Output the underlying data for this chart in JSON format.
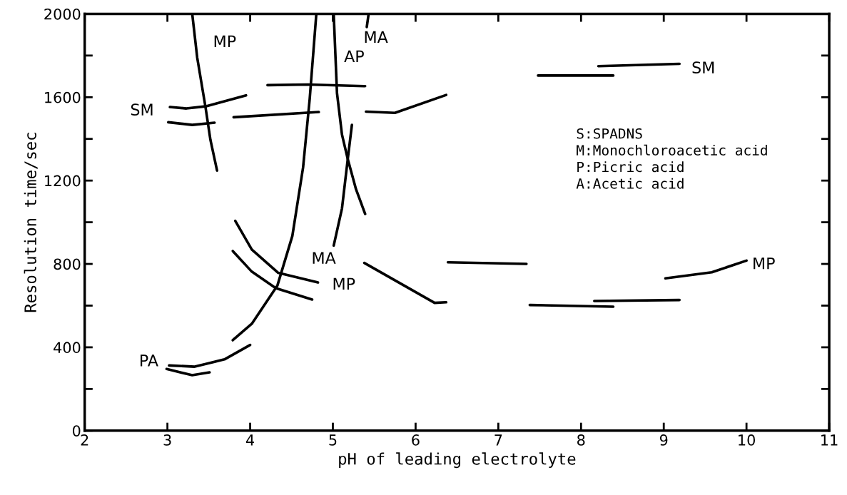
{
  "chart_data": {
    "type": "line",
    "xlabel": "pH of leading electrolyte",
    "ylabel": "Resolution time/sec",
    "xlim": [
      2,
      11
    ],
    "xticks": [
      2,
      3,
      4,
      5,
      6,
      7,
      8,
      9,
      10,
      11
    ],
    "ylim": [
      0,
      2000
    ],
    "yticks": [
      0,
      {
        "value": 200,
        "label": null
      },
      400,
      {
        "value": 600,
        "label": null
      },
      800,
      {
        "value": 1000,
        "label": null
      },
      1200,
      {
        "value": 1400,
        "label": null
      },
      1600,
      {
        "value": 1800,
        "label": null
      },
      2000
    ],
    "grid": false,
    "marker": "none",
    "line_style": "solid",
    "series": [
      {
        "color": "#000000",
        "x": [
          3.3,
          3.36,
          3.46,
          3.52,
          3.6
        ],
        "values": [
          2000,
          1790,
          1553,
          1395,
          1248
        ]
      },
      {
        "color": "#000000",
        "x": [
          3.03,
          3.23,
          3.46,
          3.95
        ],
        "values": [
          1553,
          1546,
          1556,
          1609
        ]
      },
      {
        "color": "#000000",
        "x": [
          3.01,
          3.3,
          3.57
        ],
        "values": [
          1480,
          1467,
          1478
        ]
      },
      {
        "color": "#000000",
        "x": [
          3.8,
          4.83
        ],
        "values": [
          1504,
          1529
        ]
      },
      {
        "color": "#000000",
        "x": [
          4.21,
          4.7,
          5.39
        ],
        "values": [
          1658,
          1661,
          1653
        ]
      },
      {
        "color": "#000000",
        "x": [
          3.79,
          4.02,
          4.33,
          4.51,
          4.64,
          4.72,
          4.8
        ],
        "values": [
          434,
          513,
          697,
          934,
          1263,
          1592,
          2000
        ]
      },
      {
        "color": "#000000",
        "x": [
          5.01,
          5.05,
          5.11,
          5.18,
          5.28,
          5.39
        ],
        "values": [
          2000,
          1619,
          1421,
          1303,
          1158,
          1040
        ]
      },
      {
        "color": "#000000",
        "x": [
          5.01,
          5.11,
          5.18,
          5.23
        ],
        "values": [
          888,
          1066,
          1303,
          1467
        ]
      },
      {
        "color": "#000000",
        "x": [
          5.43,
          5.41
        ],
        "values": [
          1994,
          1937
        ]
      },
      {
        "color": "#000000",
        "x": [
          3.82,
          4.02,
          4.34,
          4.82
        ],
        "values": [
          1007,
          869,
          757,
          711
        ]
      },
      {
        "color": "#000000",
        "x": [
          3.79,
          4.02,
          4.31,
          4.75
        ],
        "values": [
          862,
          763,
          684,
          629
        ]
      },
      {
        "color": "#000000",
        "x": [
          3.02,
          3.33,
          3.69,
          4.0
        ],
        "values": [
          313,
          307,
          342,
          411
        ]
      },
      {
        "color": "#000000",
        "x": [
          2.99,
          3.3,
          3.51
        ],
        "values": [
          296,
          266,
          280
        ]
      },
      {
        "color": "#000000",
        "x": [
          5.4,
          5.75,
          6.37
        ],
        "values": [
          1531,
          1525,
          1611
        ]
      },
      {
        "color": "#000000",
        "x": [
          5.38,
          6.23,
          6.37
        ],
        "values": [
          805,
          613,
          616
        ]
      },
      {
        "color": "#000000",
        "x": [
          6.39,
          7.34
        ],
        "values": [
          808,
          800
        ]
      },
      {
        "color": "#000000",
        "x": [
          7.48,
          8.39
        ],
        "values": [
          1704,
          1704
        ]
      },
      {
        "color": "#000000",
        "x": [
          8.21,
          9.19
        ],
        "values": [
          1749,
          1760
        ]
      },
      {
        "color": "#000000",
        "x": [
          7.38,
          8.39
        ],
        "values": [
          603,
          595
        ]
      },
      {
        "color": "#000000",
        "x": [
          8.16,
          9.19
        ],
        "values": [
          622,
          627
        ]
      },
      {
        "color": "#000000",
        "x": [
          9.02,
          9.58,
          10.0
        ],
        "values": [
          731,
          760,
          816
        ]
      }
    ],
    "annotations": [
      "MP",
      "AP",
      "MA",
      "SM",
      "PA",
      "MA",
      "MP",
      "SM",
      "MP",
      "S:SPADNS",
      "M:Monochloroacetic acid",
      "P:Picric acid",
      "A:Acetic acid"
    ]
  }
}
